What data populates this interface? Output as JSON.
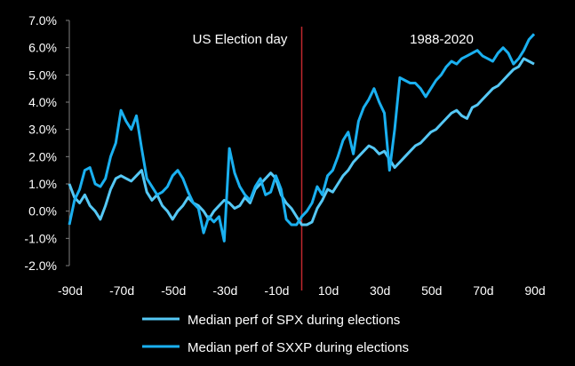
{
  "chart_data": {
    "type": "line",
    "title": "",
    "xlabel": "",
    "ylabel": "",
    "xlim": [
      -90,
      90
    ],
    "ylim": [
      -2.0,
      7.0
    ],
    "x_ticks": [
      "-90d",
      "-70d",
      "-50d",
      "-30d",
      "-10d",
      "10d",
      "30d",
      "50d",
      "70d",
      "90d"
    ],
    "x_tick_values": [
      -90,
      -70,
      -50,
      -30,
      -10,
      10,
      30,
      50,
      70,
      90
    ],
    "y_ticks": [
      "-2.0%",
      "-1.0%",
      "0.0%",
      "1.0%",
      "2.0%",
      "3.0%",
      "4.0%",
      "5.0%",
      "6.0%",
      "7.0%"
    ],
    "y_tick_values": [
      -2,
      -1,
      0,
      1,
      2,
      3,
      4,
      5,
      6,
      7
    ],
    "annotations": [
      {
        "text": "US Election day",
        "x": 0,
        "kind": "vline"
      },
      {
        "text": "1988-2020",
        "kind": "label"
      }
    ],
    "legend_position": "bottom",
    "series": [
      {
        "name": "Median perf of SPX during elections",
        "color": "#55c8f5",
        "x": [
          -90,
          -88,
          -86,
          -84,
          -82,
          -80,
          -78,
          -76,
          -74,
          -72,
          -70,
          -68,
          -66,
          -64,
          -62,
          -60,
          -58,
          -56,
          -54,
          -52,
          -50,
          -48,
          -46,
          -44,
          -42,
          -40,
          -38,
          -36,
          -34,
          -32,
          -30,
          -28,
          -26,
          -24,
          -22,
          -20,
          -18,
          -16,
          -14,
          -12,
          -10,
          -8,
          -6,
          -4,
          -2,
          0,
          2,
          4,
          6,
          8,
          10,
          12,
          14,
          16,
          18,
          20,
          22,
          24,
          26,
          28,
          30,
          32,
          34,
          36,
          38,
          40,
          42,
          44,
          46,
          48,
          50,
          52,
          54,
          56,
          58,
          60,
          62,
          64,
          66,
          68,
          70,
          72,
          74,
          76,
          78,
          80,
          82,
          84,
          86,
          88,
          90
        ],
        "values": [
          1.0,
          0.5,
          0.3,
          0.6,
          0.2,
          0.0,
          -0.3,
          0.2,
          0.8,
          1.2,
          1.3,
          1.2,
          1.1,
          1.3,
          1.5,
          0.7,
          0.4,
          0.6,
          0.2,
          0.0,
          -0.3,
          0.0,
          0.2,
          0.5,
          0.3,
          0.2,
          0.0,
          -0.3,
          0.0,
          0.2,
          0.4,
          0.3,
          0.1,
          0.2,
          0.5,
          0.3,
          0.8,
          1.0,
          1.2,
          1.4,
          1.2,
          0.6,
          0.3,
          0.1,
          -0.2,
          -0.5,
          -0.5,
          -0.4,
          0.1,
          0.4,
          0.8,
          0.7,
          1.0,
          1.3,
          1.5,
          1.8,
          2.0,
          2.2,
          2.4,
          2.3,
          2.1,
          2.2,
          1.9,
          1.6,
          1.8,
          2.0,
          2.2,
          2.4,
          2.5,
          2.7,
          2.9,
          3.0,
          3.2,
          3.4,
          3.6,
          3.7,
          3.5,
          3.4,
          3.8,
          3.9,
          4.1,
          4.3,
          4.5,
          4.6,
          4.8,
          5.0,
          5.2,
          5.3,
          5.6,
          5.5,
          5.4
        ]
      },
      {
        "name": "Median perf of SXXP during elections",
        "color": "#1ab0f0",
        "x": [
          -90,
          -88,
          -86,
          -84,
          -82,
          -80,
          -78,
          -76,
          -74,
          -72,
          -70,
          -68,
          -66,
          -64,
          -62,
          -60,
          -58,
          -56,
          -54,
          -52,
          -50,
          -48,
          -46,
          -44,
          -42,
          -40,
          -38,
          -36,
          -34,
          -32,
          -30,
          -28,
          -26,
          -24,
          -22,
          -20,
          -18,
          -16,
          -14,
          -12,
          -10,
          -8,
          -6,
          -4,
          -2,
          0,
          2,
          4,
          6,
          8,
          10,
          12,
          14,
          16,
          18,
          20,
          22,
          24,
          26,
          28,
          30,
          32,
          34,
          36,
          38,
          40,
          42,
          44,
          46,
          48,
          50,
          52,
          54,
          56,
          58,
          60,
          62,
          64,
          66,
          68,
          70,
          72,
          74,
          76,
          78,
          80,
          82,
          84,
          86,
          88,
          90
        ],
        "values": [
          -0.5,
          0.4,
          0.8,
          1.5,
          1.6,
          1.0,
          0.9,
          1.2,
          2.0,
          2.5,
          3.7,
          3.3,
          3.0,
          3.5,
          2.3,
          1.2,
          0.9,
          0.6,
          0.7,
          0.9,
          1.3,
          1.5,
          1.2,
          0.7,
          0.3,
          0.1,
          -0.8,
          -0.2,
          -0.4,
          -0.2,
          -1.1,
          2.3,
          1.4,
          0.9,
          0.6,
          0.4,
          0.9,
          1.2,
          0.6,
          0.7,
          1.3,
          0.8,
          -0.3,
          -0.5,
          -0.5,
          -0.2,
          0.0,
          0.3,
          0.9,
          0.6,
          1.3,
          1.5,
          2.0,
          2.6,
          2.9,
          2.1,
          3.3,
          3.8,
          4.1,
          4.5,
          4.0,
          3.6,
          1.5,
          3.0,
          4.9,
          4.8,
          4.7,
          4.7,
          4.5,
          4.2,
          4.5,
          4.8,
          5.0,
          5.3,
          5.5,
          5.4,
          5.6,
          5.7,
          5.8,
          5.9,
          5.7,
          5.6,
          5.5,
          5.8,
          6.0,
          5.8,
          5.4,
          5.6,
          5.9,
          6.3,
          6.5
        ]
      }
    ]
  }
}
